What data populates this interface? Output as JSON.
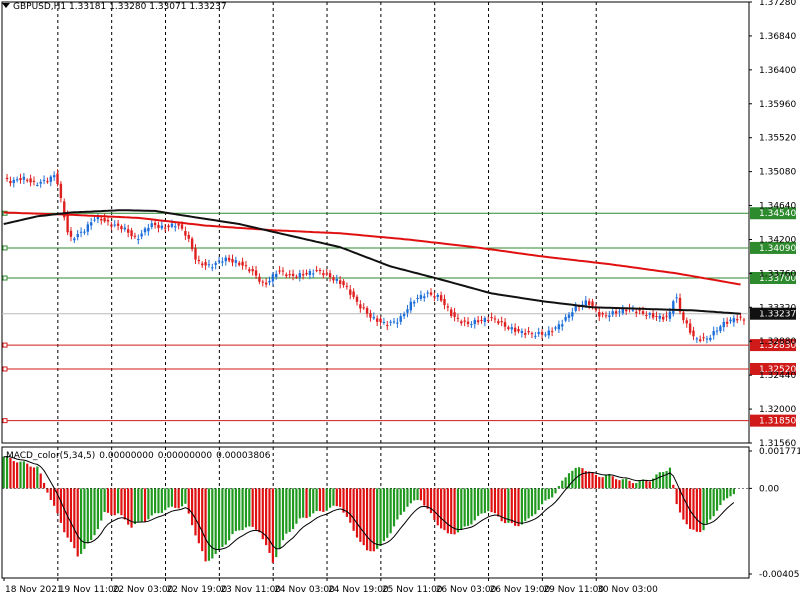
{
  "header": {
    "symbol": "GBPUSD,H1",
    "open": "1.33181",
    "high": "1.33280",
    "low": "1.33071",
    "close": "1.33237"
  },
  "subwindow": {
    "title": "MACD_color(5,34,5)",
    "v1": "0.00000000",
    "v2": "0.00000000",
    "v3": "0.00003806",
    "axis_labels": [
      "0.0017711",
      "0.00",
      "-0.004056"
    ]
  },
  "colors": {
    "bull": "#1e6fd9",
    "bear": "#e02020",
    "ma_slow": "#e01010",
    "ma_fast": "#111111",
    "hist_up": "#1f9a1f",
    "hist_down": "#e01010",
    "hline_green": "#2d8a2d",
    "hline_red": "#d01a1a",
    "current": "#111111"
  },
  "price_axis": {
    "labels": [
      "1.37280",
      "1.36840",
      "1.36400",
      "1.35960",
      "1.35520",
      "1.35080",
      "1.34640",
      "1.34200",
      "1.33760",
      "1.33320",
      "1.32880",
      "1.32440",
      "1.32000",
      "1.31560"
    ]
  },
  "levels": [
    {
      "price": "1.34540",
      "color": "green"
    },
    {
      "price": "1.34090",
      "color": "green"
    },
    {
      "price": "1.33700",
      "color": "green"
    },
    {
      "price": "1.33237",
      "color": "current"
    },
    {
      "price": "1.32830",
      "color": "red"
    },
    {
      "price": "1.32520",
      "color": "red"
    },
    {
      "price": "1.31850",
      "color": "red"
    }
  ],
  "time_axis": {
    "labels": [
      "18 Nov 2021",
      "19 Nov 11:00",
      "22 Nov 03:00",
      "22 Nov 19:00",
      "23 Nov 11:00",
      "24 Nov 03:00",
      "24 Nov 19:00",
      "25 Nov 11:00",
      "26 Nov 03:00",
      "26 Nov 19:00",
      "29 Nov 11:00",
      "30 Nov 03:00"
    ]
  },
  "chart_data": {
    "type": "candlestick",
    "symbol": "GBPUSD",
    "timeframe": "H1",
    "ylim": [
      1.3156,
      1.3728
    ],
    "last_price": 1.33237,
    "price_waypoints": [
      [
        0,
        1.3498
      ],
      [
        3,
        1.3495
      ],
      [
        6,
        1.35
      ],
      [
        10,
        1.3492
      ],
      [
        14,
        1.3498
      ],
      [
        16,
        1.3505
      ],
      [
        18,
        1.346
      ],
      [
        20,
        1.342
      ],
      [
        24,
        1.343
      ],
      [
        28,
        1.345
      ],
      [
        32,
        1.344
      ],
      [
        36,
        1.3435
      ],
      [
        40,
        1.342
      ],
      [
        44,
        1.344
      ],
      [
        48,
        1.3435
      ],
      [
        52,
        1.344
      ],
      [
        55,
        1.3425
      ],
      [
        58,
        1.339
      ],
      [
        62,
        1.3385
      ],
      [
        66,
        1.3395
      ],
      [
        70,
        1.339
      ],
      [
        74,
        1.338
      ],
      [
        78,
        1.336
      ],
      [
        82,
        1.338
      ],
      [
        86,
        1.3372
      ],
      [
        90,
        1.3375
      ],
      [
        94,
        1.338
      ],
      [
        98,
        1.337
      ],
      [
        102,
        1.336
      ],
      [
        106,
        1.3335
      ],
      [
        110,
        1.3318
      ],
      [
        114,
        1.331
      ],
      [
        118,
        1.3315
      ],
      [
        122,
        1.334
      ],
      [
        126,
        1.335
      ],
      [
        130,
        1.3345
      ],
      [
        134,
        1.332
      ],
      [
        138,
        1.331
      ],
      [
        142,
        1.3315
      ],
      [
        146,
        1.3318
      ],
      [
        150,
        1.3306
      ],
      [
        154,
        1.33
      ],
      [
        158,
        1.3297
      ],
      [
        162,
        1.3298
      ],
      [
        166,
        1.331
      ],
      [
        170,
        1.333
      ],
      [
        174,
        1.334
      ],
      [
        178,
        1.332
      ],
      [
        182,
        1.3325
      ],
      [
        186,
        1.333
      ],
      [
        190,
        1.3325
      ],
      [
        194,
        1.332
      ],
      [
        198,
        1.3318
      ],
      [
        200,
        1.335
      ],
      [
        202,
        1.332
      ],
      [
        206,
        1.329
      ],
      [
        210,
        1.3292
      ],
      [
        214,
        1.331
      ],
      [
        218,
        1.3318
      ],
      [
        221,
        1.3315
      ]
    ],
    "ma_slow_waypoints": [
      [
        0,
        1.3455
      ],
      [
        20,
        1.3452
      ],
      [
        40,
        1.3448
      ],
      [
        60,
        1.3438
      ],
      [
        80,
        1.3432
      ],
      [
        100,
        1.3428
      ],
      [
        120,
        1.342
      ],
      [
        140,
        1.341
      ],
      [
        160,
        1.3398
      ],
      [
        180,
        1.3388
      ],
      [
        200,
        1.3376
      ],
      [
        221,
        1.336
      ]
    ],
    "ma_fast_waypoints": [
      [
        0,
        1.344
      ],
      [
        10,
        1.345
      ],
      [
        20,
        1.3455
      ],
      [
        35,
        1.3458
      ],
      [
        45,
        1.3457
      ],
      [
        55,
        1.345
      ],
      [
        70,
        1.344
      ],
      [
        85,
        1.3425
      ],
      [
        100,
        1.341
      ],
      [
        115,
        1.3385
      ],
      [
        130,
        1.3368
      ],
      [
        145,
        1.335
      ],
      [
        160,
        1.334
      ],
      [
        175,
        1.3332
      ],
      [
        190,
        1.333
      ],
      [
        205,
        1.3328
      ],
      [
        221,
        1.3323
      ]
    ],
    "macd_waypoints": [
      [
        0,
        0.0015
      ],
      [
        10,
        0.001
      ],
      [
        18,
        -0.002
      ],
      [
        22,
        -0.0032
      ],
      [
        26,
        -0.0025
      ],
      [
        30,
        -0.0012
      ],
      [
        34,
        -0.0012
      ],
      [
        38,
        -0.0018
      ],
      [
        42,
        -0.0015
      ],
      [
        48,
        -0.001
      ],
      [
        54,
        -0.0008
      ],
      [
        60,
        -0.0035
      ],
      [
        64,
        -0.003
      ],
      [
        68,
        -0.0022
      ],
      [
        72,
        -0.0018
      ],
      [
        76,
        -0.002
      ],
      [
        80,
        -0.0035
      ],
      [
        84,
        -0.0022
      ],
      [
        88,
        -0.0015
      ],
      [
        92,
        -0.0012
      ],
      [
        96,
        -0.001
      ],
      [
        100,
        -0.0008
      ],
      [
        104,
        -0.002
      ],
      [
        108,
        -0.003
      ],
      [
        112,
        -0.0028
      ],
      [
        116,
        -0.0018
      ],
      [
        120,
        -0.0008
      ],
      [
        124,
        -0.0005
      ],
      [
        128,
        -0.0015
      ],
      [
        132,
        -0.0022
      ],
      [
        136,
        -0.002
      ],
      [
        140,
        -0.0015
      ],
      [
        144,
        -0.001
      ],
      [
        148,
        -0.0015
      ],
      [
        152,
        -0.0018
      ],
      [
        156,
        -0.0015
      ],
      [
        160,
        -0.0008
      ],
      [
        164,
        -0.0002
      ],
      [
        168,
        0.0008
      ],
      [
        172,
        0.001
      ],
      [
        176,
        0.0006
      ],
      [
        180,
        0.0006
      ],
      [
        184,
        0.0004
      ],
      [
        188,
        0.0003
      ],
      [
        192,
        0.0004
      ],
      [
        196,
        0.0008
      ],
      [
        198,
        0.001
      ],
      [
        200,
        -0.0008
      ],
      [
        204,
        -0.002
      ],
      [
        208,
        -0.002
      ],
      [
        212,
        -0.001
      ],
      [
        216,
        -0.0003
      ],
      [
        220,
        0.0
      ]
    ]
  }
}
